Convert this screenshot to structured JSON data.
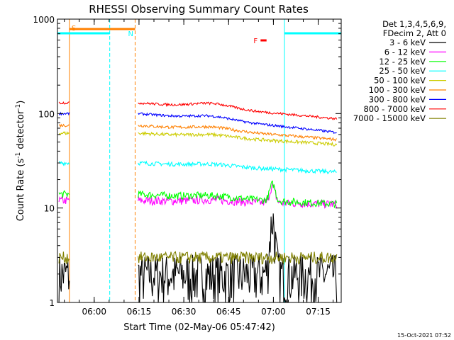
{
  "chart_data": {
    "type": "line",
    "title": "RHESSI Observing Summary Count Rates",
    "xlabel": "Start Time (02-May-06 05:47:42)",
    "ylabel_main": "Count Rate (s",
    "ylabel_sup1": "-1",
    "ylabel_mid": " detector",
    "ylabel_sup2": "-1",
    "ylabel_end": ")",
    "yscale": "log",
    "ylim": [
      1,
      1000
    ],
    "xlim_minutes": [
      0,
      95
    ],
    "x_tick_labels": [
      {
        "label": "06:00",
        "minute": 12.3
      },
      {
        "label": "06:15",
        "minute": 27.3
      },
      {
        "label": "06:30",
        "minute": 42.3
      },
      {
        "label": "06:45",
        "minute": 57.3
      },
      {
        "label": "07:00",
        "minute": 72.3
      },
      {
        "label": "07:15",
        "minute": 87.3
      }
    ],
    "y_tick_labels": [
      {
        "label": "1",
        "value": 1
      },
      {
        "label": "10",
        "value": 10
      },
      {
        "label": "100",
        "value": 100
      },
      {
        "label": "1000",
        "value": 1000
      }
    ],
    "legend_header": [
      "Det 1,3,4,5,6,9,",
      "FDecim 2, Att 0"
    ],
    "series": [
      {
        "name": "3 - 6 keV",
        "color": "#000000",
        "level_start": 2,
        "level_end": 2,
        "bump": 0,
        "noise": 0.6
      },
      {
        "name": "6 - 12 keV",
        "color": "#ff00ff",
        "level_start": 12,
        "level_end": 11,
        "bump": 0.05,
        "noise": 0.1
      },
      {
        "name": "12 - 25 keV",
        "color": "#00ff00",
        "level_start": 14,
        "level_end": 11,
        "bump": 0.05,
        "noise": 0.09
      },
      {
        "name": "25 - 50 keV",
        "color": "#00ffff",
        "level_start": 30,
        "level_end": 24,
        "bump": 0.05,
        "noise": 0.05
      },
      {
        "name": "50 - 100 keV",
        "color": "#cccc00",
        "level_start": 62,
        "level_end": 47,
        "bump": 0.06,
        "noise": 0.04
      },
      {
        "name": "100 - 300 keV",
        "color": "#ff8000",
        "level_start": 75,
        "level_end": 53,
        "bump": 0.08,
        "noise": 0.035
      },
      {
        "name": "300 - 800 keV",
        "color": "#0000ff",
        "level_start": 100,
        "level_end": 63,
        "bump": 0.09,
        "noise": 0.03
      },
      {
        "name": "800 - 7000 keV",
        "color": "#ff0000",
        "level_start": 130,
        "level_end": 88,
        "bump": 0.12,
        "noise": 0.03
      },
      {
        "name": "7000 - 15000 keV",
        "color": "#808000",
        "level_start": 3,
        "level_end": 3,
        "bump": 0,
        "noise": 0.15
      }
    ],
    "data_gaps_minutes": [
      [
        4,
        27
      ]
    ],
    "flare_peak_minute": 72,
    "annotations": [
      {
        "label": "S",
        "color": "#ff8000"
      },
      {
        "label": "N",
        "color": "#00ffff"
      },
      {
        "label": "F",
        "color": "#ff0000"
      }
    ],
    "saa_interval_minutes": [
      4,
      26
    ],
    "night_intervals_minutes": [
      [
        0,
        17.5
      ],
      [
        76,
        95
      ]
    ],
    "flare_interval_minutes": [
      68,
      70
    ]
  },
  "footer": {
    "date_stamp": "15-Oct-2021 07:52"
  }
}
